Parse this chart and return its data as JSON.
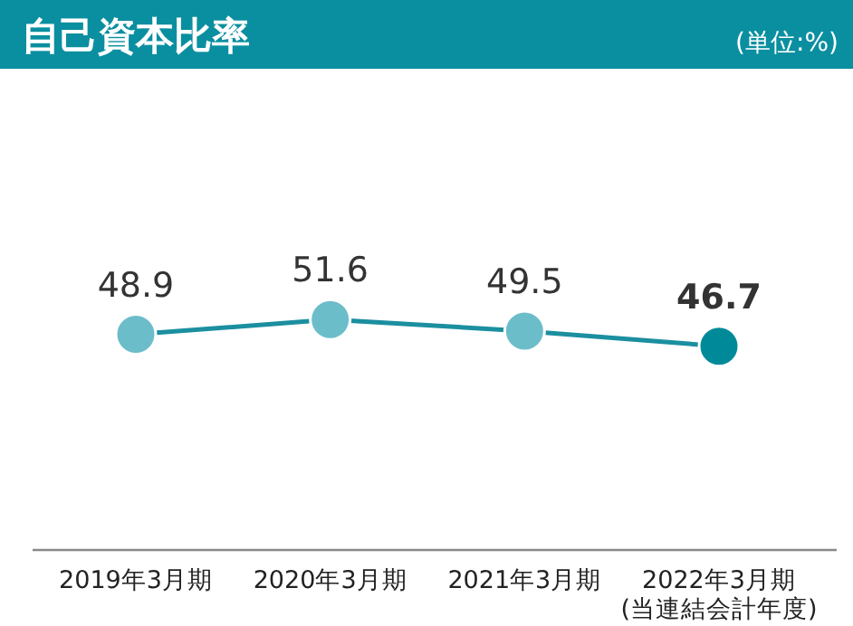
{
  "chart_data": {
    "type": "line",
    "title": "自己資本比率",
    "annotations": [
      "(単位:%)"
    ],
    "categories": [
      "2019年3月期",
      "2020年3月期",
      "2021年3月期",
      "2022年3月期\n(当連結会計年度)"
    ],
    "series": [
      {
        "color": "#1b8fa0",
        "colors": [
          "#6cbdca",
          "#6cbdca",
          "#6cbdca",
          "#008a99"
        ],
        "values": [
          48.9,
          51.6,
          49.5,
          46.7
        ]
      }
    ],
    "data_labels": true,
    "marker": "circle"
  }
}
